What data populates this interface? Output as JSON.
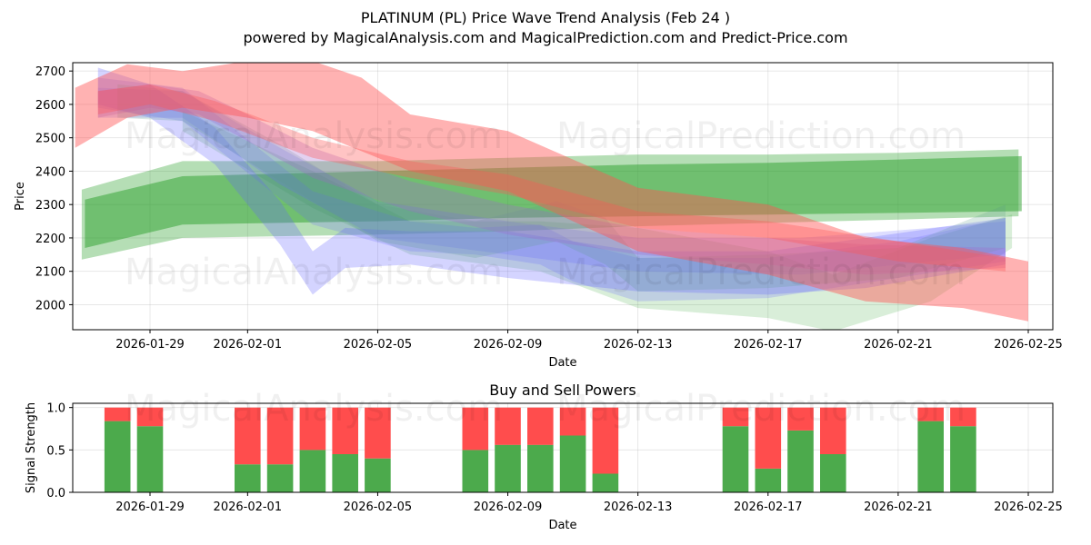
{
  "figure": {
    "title_line1": "PLATINUM (PL) Price Wave Trend Analysis (Feb 24 )",
    "title_line2": "powered by MagicalAnalysis.com and MagicalPrediction.com and Predict-Price.com",
    "watermarks": [
      "MagicalAnalysis.com",
      "MagicalPrediction.com"
    ]
  },
  "colors": {
    "green_band": "#2ca02c",
    "blue_band": "#6666ff",
    "red_band": "#ff5555",
    "buy_bar": "#4caa4c",
    "sell_bar": "#ff4d4d"
  },
  "chart_data": [
    {
      "type": "area",
      "title": "PLATINUM (PL) Price Wave Trend Analysis (Feb 24 )",
      "xlabel": "Date",
      "ylabel": "Price",
      "x_tick_labels": [
        "2026-01-29",
        "2026-02-01",
        "2026-02-05",
        "2026-02-09",
        "2026-02-13",
        "2026-02-17",
        "2026-02-21",
        "2026-02-25"
      ],
      "y_ticks": [
        2000,
        2100,
        2200,
        2300,
        2400,
        2500,
        2600,
        2700
      ],
      "xlim": [
        "2026-01-26.6",
        "2026-02-25.2"
      ],
      "ylim": [
        1925,
        2725
      ],
      "grid": true,
      "bands": [
        {
          "name": "green-wave-1",
          "color": "green",
          "opacity": 0.35,
          "x": [
            "2026-01-26.9",
            "2026-01-30",
            "2026-02-05",
            "2026-02-09",
            "2026-02-13",
            "2026-02-17",
            "2026-02-21",
            "2026-02-24.7"
          ],
          "upper": [
            2345,
            2430,
            2430,
            2440,
            2450,
            2450,
            2455,
            2465
          ],
          "lower": [
            2135,
            2200,
            2210,
            2220,
            2235,
            2245,
            2255,
            2265
          ]
        },
        {
          "name": "green-wave-2",
          "color": "green",
          "opacity": 0.5,
          "x": [
            "2026-01-27",
            "2026-01-30",
            "2026-02-05",
            "2026-02-09",
            "2026-02-13",
            "2026-02-17",
            "2026-02-21",
            "2026-02-24.8"
          ],
          "upper": [
            2315,
            2385,
            2400,
            2410,
            2420,
            2425,
            2435,
            2445
          ],
          "lower": [
            2170,
            2240,
            2250,
            2260,
            2265,
            2270,
            2275,
            2280
          ]
        },
        {
          "name": "green-wave-3",
          "color": "green",
          "opacity": 0.18,
          "x": [
            "2026-01-30",
            "2026-02-03",
            "2026-02-06",
            "2026-02-10",
            "2026-02-13",
            "2026-02-17",
            "2026-02-19",
            "2026-02-22",
            "2026-02-24.5"
          ],
          "upper": [
            2580,
            2400,
            2250,
            2250,
            2230,
            2160,
            2090,
            2200,
            2270
          ],
          "lower": [
            2520,
            2290,
            2150,
            2100,
            1990,
            1960,
            1920,
            2010,
            2170
          ]
        },
        {
          "name": "blue-wave-1",
          "color": "blue",
          "opacity": 0.28,
          "x": [
            "2026-01-27.4",
            "2026-01-29",
            "2026-01-31",
            "2026-02-02",
            "2026-02-03",
            "2026-02-04",
            "2026-02-06",
            "2026-02-09",
            "2026-02-13",
            "2026-02-17",
            "2026-02-20",
            "2026-02-24.3"
          ],
          "upper": [
            2710,
            2660,
            2530,
            2310,
            2160,
            2230,
            2220,
            2220,
            2160,
            2160,
            2200,
            2260
          ],
          "lower": [
            2600,
            2560,
            2420,
            2180,
            2030,
            2110,
            2120,
            2080,
            2040,
            2030,
            2050,
            2120
          ]
        },
        {
          "name": "blue-wave-2",
          "color": "blue",
          "opacity": 0.22,
          "x": [
            "2026-01-27.4",
            "2026-01-30",
            "2026-02-03",
            "2026-02-06",
            "2026-02-08",
            "2026-02-10",
            "2026-02-11",
            "2026-02-13",
            "2026-02-17",
            "2026-02-21",
            "2026-02-24.3"
          ],
          "upper": [
            2680,
            2650,
            2340,
            2250,
            2230,
            2240,
            2190,
            2140,
            2140,
            2190,
            2260
          ],
          "lower": [
            2590,
            2550,
            2240,
            2160,
            2150,
            2120,
            2070,
            2010,
            2020,
            2080,
            2130
          ]
        },
        {
          "name": "blue-wave-3",
          "color": "blue",
          "opacity": 0.22,
          "x": [
            "2026-01-27.4",
            "2026-01-30",
            "2026-02-02",
            "2026-02-05",
            "2026-02-09",
            "2026-02-13",
            "2026-02-18",
            "2026-02-22",
            "2026-02-24.3"
          ],
          "upper": [
            2650,
            2640,
            2470,
            2310,
            2250,
            2200,
            2200,
            2230,
            2250
          ],
          "lower": [
            2560,
            2560,
            2360,
            2200,
            2150,
            2100,
            2090,
            2130,
            2150
          ]
        },
        {
          "name": "teal-wave",
          "color": "teal",
          "opacity": 0.22,
          "x": [
            "2026-01-28",
            "2026-01-30",
            "2026-02-02",
            "2026-02-05",
            "2026-02-08",
            "2026-02-10.5",
            "2026-02-12",
            "2026-02-13",
            "2026-02-17",
            "2026-02-21",
            "2026-02-24.3"
          ],
          "upper": [
            2660,
            2640,
            2480,
            2300,
            2250,
            2310,
            2260,
            2140,
            2150,
            2170,
            2300
          ],
          "lower": [
            2560,
            2550,
            2370,
            2190,
            2140,
            2190,
            2120,
            2040,
            2050,
            2080,
            2170
          ]
        },
        {
          "name": "purple-wave",
          "color": "purple",
          "opacity": 0.3,
          "x": [
            "2026-01-27.4",
            "2026-01-29",
            "2026-01-30.5",
            "2026-02-01",
            "2026-02-03",
            "2026-02-06",
            "2026-02-09",
            "2026-02-13",
            "2026-02-17",
            "2026-02-20",
            "2026-02-24.3"
          ],
          "upper": [
            2640,
            2660,
            2640,
            2570,
            2470,
            2370,
            2300,
            2230,
            2200,
            2180,
            2170
          ],
          "lower": [
            2560,
            2590,
            2570,
            2490,
            2380,
            2280,
            2210,
            2150,
            2120,
            2090,
            2110
          ]
        },
        {
          "name": "red-wave-1",
          "color": "red",
          "opacity": 0.45,
          "x": [
            "2026-01-26.7",
            "2026-01-28.3",
            "2026-01-30",
            "2026-02-01",
            "2026-02-03",
            "2026-02-04.5",
            "2026-02-06",
            "2026-02-09",
            "2026-02-13",
            "2026-02-17",
            "2026-02-20",
            "2026-02-23",
            "2026-02-25"
          ],
          "upper": [
            2650,
            2720,
            2700,
            2730,
            2730,
            2680,
            2570,
            2520,
            2350,
            2300,
            2200,
            2170,
            2130
          ],
          "lower": [
            2470,
            2560,
            2590,
            2560,
            2520,
            2460,
            2400,
            2340,
            2160,
            2090,
            2010,
            1990,
            1950
          ]
        },
        {
          "name": "red-wave-2",
          "color": "red",
          "opacity": 0.35,
          "x": [
            "2026-01-27.4",
            "2026-01-29",
            "2026-01-31",
            "2026-02-03",
            "2026-02-06",
            "2026-02-09",
            "2026-02-13",
            "2026-02-17",
            "2026-02-21",
            "2026-02-24.3"
          ],
          "upper": [
            2640,
            2660,
            2610,
            2500,
            2430,
            2390,
            2280,
            2250,
            2190,
            2140
          ],
          "lower": [
            2570,
            2600,
            2550,
            2440,
            2380,
            2330,
            2230,
            2200,
            2130,
            2100
          ]
        }
      ]
    },
    {
      "type": "bar",
      "title": "Buy and Sell Powers",
      "xlabel": "Date",
      "ylabel": "Signal Strength",
      "x_tick_labels": [
        "2026-01-29",
        "2026-02-01",
        "2026-02-05",
        "2026-02-09",
        "2026-02-13",
        "2026-02-17",
        "2026-02-21",
        "2026-02-25"
      ],
      "y_ticks": [
        "0.0",
        "0.5",
        "1.0"
      ],
      "ylim": [
        0,
        1.05
      ],
      "categories": [
        "2026-01-28",
        "2026-01-29",
        "2026-02-01",
        "2026-02-02",
        "2026-02-03",
        "2026-02-04",
        "2026-02-05",
        "2026-02-08",
        "2026-02-09",
        "2026-02-10",
        "2026-02-11",
        "2026-02-12",
        "2026-02-16",
        "2026-02-17",
        "2026-02-18",
        "2026-02-19",
        "2026-02-22",
        "2026-02-23"
      ],
      "series": [
        {
          "name": "Buy",
          "color": "green",
          "values": [
            0.84,
            0.78,
            0.33,
            0.33,
            0.5,
            0.45,
            0.4,
            0.5,
            0.56,
            0.56,
            0.67,
            0.22,
            0.78,
            0.28,
            0.73,
            0.45,
            0.84,
            0.78
          ]
        },
        {
          "name": "Sell",
          "color": "red",
          "values": [
            0.16,
            0.22,
            0.67,
            0.67,
            0.5,
            0.55,
            0.6,
            0.5,
            0.44,
            0.44,
            0.33,
            0.78,
            0.22,
            0.72,
            0.27,
            0.55,
            0.16,
            0.22
          ]
        }
      ]
    }
  ]
}
